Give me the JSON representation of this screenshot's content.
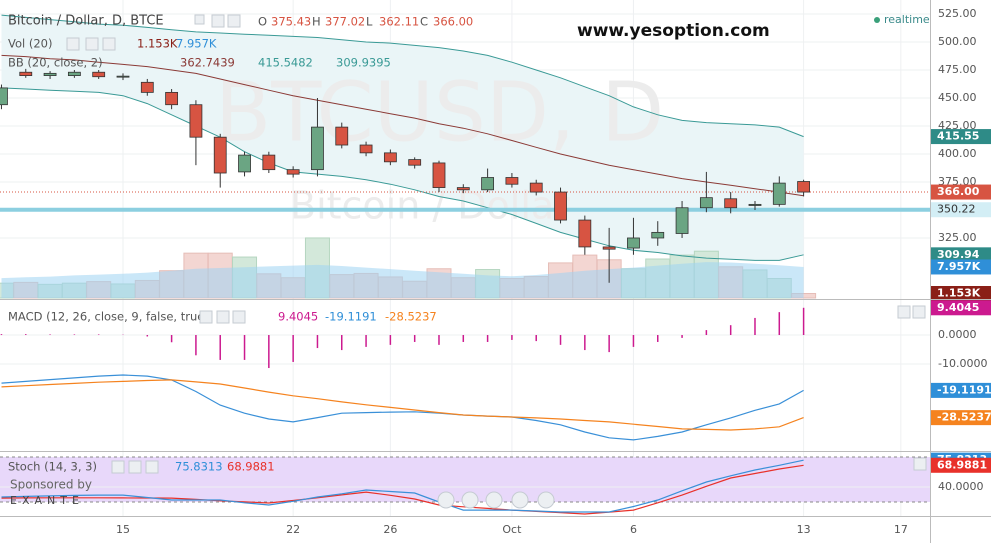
{
  "header": {
    "site": "www.yesoption.com",
    "status": "realtime",
    "watermark": "BTCUSD, D",
    "watermark_sub": "Bitcoin / Dollar",
    "sponsor": "Sponsored by",
    "sponsor_name": "EXANTE"
  },
  "chart_data": [
    {
      "type": "candlestick",
      "title": "Bitcoin / Dollar, D, BTCE",
      "ohlc": [
        {
          "key": "O",
          "value": "375.43"
        },
        {
          "key": "H",
          "value": "377.02"
        },
        {
          "key": "L",
          "value": "362.11"
        },
        {
          "key": "C",
          "value": "366.00"
        }
      ],
      "open": [
        444,
        473,
        470,
        470,
        473,
        469,
        464,
        455,
        444,
        415,
        384,
        399,
        386,
        386,
        424,
        408,
        401,
        395,
        392,
        370,
        368,
        379,
        374,
        366,
        341,
        317,
        316,
        325,
        329,
        352,
        360,
        354,
        355,
        375.43
      ],
      "high": [
        462,
        476,
        474,
        475,
        475,
        472,
        467,
        458,
        448,
        418,
        402,
        402,
        389,
        450,
        428,
        411,
        404,
        397,
        394,
        373,
        387,
        383,
        377,
        370,
        345,
        334,
        343,
        340,
        358,
        384,
        366,
        358,
        380,
        377.02
      ],
      "low": [
        440,
        468,
        467,
        468,
        467,
        466,
        452,
        440,
        390,
        370,
        380,
        383,
        379,
        380,
        405,
        398,
        390,
        387,
        366,
        365,
        366,
        370,
        363,
        338,
        310,
        285,
        310,
        318,
        325,
        348,
        347,
        350,
        353,
        362.11
      ],
      "close": [
        459,
        470,
        472,
        473,
        469,
        469.5,
        455,
        444,
        415,
        383,
        399,
        386,
        382,
        424,
        408,
        401,
        393,
        390,
        370,
        368,
        379,
        373,
        366,
        341,
        317,
        315,
        325,
        330,
        352,
        361,
        352,
        355,
        374,
        366
      ],
      "up_color": "#6ba583",
      "down_color": "#d75442",
      "xlim": [
        -0.06,
        38.2
      ],
      "xticks": [
        {
          "value": 5,
          "label": "15"
        },
        {
          "value": 12,
          "label": "22"
        },
        {
          "value": 16,
          "label": "26"
        },
        {
          "value": 21,
          "label": "Oct"
        },
        {
          "value": 26,
          "label": "6"
        },
        {
          "value": 33,
          "label": "13"
        },
        {
          "value": 37,
          "label": "17"
        }
      ],
      "ylim": [
        271.4,
        537.5
      ],
      "yticks": [
        {
          "value": 325,
          "label": "325.00"
        },
        {
          "value": 350,
          "label": "350.00"
        },
        {
          "value": 375,
          "label": "375.00"
        },
        {
          "value": 400,
          "label": "400.00"
        },
        {
          "value": 425,
          "label": "425.00"
        },
        {
          "value": 450,
          "label": "450.00"
        },
        {
          "value": 475,
          "label": "475.00"
        },
        {
          "value": 500,
          "label": "500.00"
        },
        {
          "value": 525,
          "label": "525.00"
        }
      ],
      "grid": true,
      "bollinger": {
        "title": "BB (20, close, 2)",
        "labels": [
          "362.7439",
          "415.5482",
          "309.9395"
        ],
        "band_color": "#3a9a96",
        "mid_color": "#8b3a36",
        "fill": "#eaf5f7",
        "upper": [
          524,
          522,
          520,
          518,
          516,
          515,
          513,
          511,
          509,
          508,
          507,
          506,
          505,
          504,
          502,
          500,
          499,
          497,
          495,
          492,
          488,
          482,
          475,
          468,
          460,
          452,
          442,
          435,
          430,
          428,
          427,
          426,
          424,
          415.55
        ],
        "middle": [
          488,
          487,
          485,
          484,
          482,
          480,
          478,
          475,
          472,
          467,
          462,
          457,
          452,
          448,
          444,
          440,
          436,
          432,
          427,
          423,
          418,
          412,
          406,
          400,
          395,
          390,
          386,
          382,
          378,
          375,
          372,
          369,
          366,
          362.74
        ],
        "lower": [
          459,
          458,
          457,
          456,
          455,
          452,
          445,
          435,
          425,
          415,
          402,
          392,
          384,
          382,
          380,
          377,
          373,
          368,
          362,
          358,
          352,
          346,
          338,
          330,
          324,
          318,
          314,
          312,
          309,
          307,
          306,
          305,
          305,
          309.94
        ]
      },
      "volume": {
        "title": "Vol (20)",
        "up_color": "#d3e8da",
        "down_color": "#f3d6d2",
        "ma_color": "#9fd4f2",
        "values": [
          3800,
          4000,
          3500,
          3800,
          4200,
          3600,
          4500,
          7000,
          11500,
          11500,
          10500,
          6200,
          5200,
          15400,
          6000,
          6300,
          5400,
          4300,
          7500,
          5200,
          7300,
          5000,
          5500,
          9000,
          11000,
          9800,
          7500,
          10000,
          11000,
          12000,
          8000,
          7200,
          5000,
          1153
        ],
        "ma": [
          5100,
          5300,
          5500,
          5800,
          6000,
          6200,
          6500,
          7000,
          7500,
          7700,
          7900,
          8100,
          8300,
          8500,
          8200,
          7800,
          7400,
          7000,
          6600,
          6200,
          5800,
          5600,
          5900,
          6400,
          7000,
          7400,
          7800,
          8300,
          8800,
          9200,
          9100,
          8800,
          8400,
          7957
        ],
        "badges": [
          {
            "value": 1153,
            "label": "1.153K",
            "color": "#8a1f17"
          },
          {
            "value": 7957,
            "label": "7.957K",
            "color": "#2f8fd8"
          }
        ]
      },
      "price_line": {
        "value": 350.22,
        "label": "350.22",
        "color": "#8ccfe0"
      },
      "badges": [
        {
          "value": 415.55,
          "label": "415.55",
          "color": "#2e8b87"
        },
        {
          "value": 366,
          "label": "366.00",
          "color": "#d75442"
        },
        {
          "value": 309.94,
          "label": "309.94",
          "color": "#2e8b87"
        }
      ]
    },
    {
      "type": "macd",
      "title": "MACD (12, 26, close, 9, false, true)",
      "histogram": {
        "color": "#cc1a8f",
        "values": [
          0.3,
          0.3,
          0.2,
          0.2,
          0.2,
          0.1,
          -0.5,
          -2.5,
          -7,
          -8.6,
          -8.6,
          -11.4,
          -9.3,
          -4.5,
          -5.2,
          -4.1,
          -3.4,
          -2.4,
          -3.4,
          -2.4,
          -2.4,
          -1.7,
          -2.1,
          -3.4,
          -5.2,
          -5.9,
          -4.1,
          -2.4,
          -1,
          1.7,
          3.4,
          5.9,
          7.9,
          9.4045
        ]
      },
      "macd": {
        "color": "#3a90d8",
        "values": [
          -16.6,
          -16,
          -15.4,
          -14.8,
          -14.2,
          -13.8,
          -14.2,
          -15.5,
          -19.5,
          -24.2,
          -27,
          -29,
          -30,
          -28.5,
          -27,
          -26.8,
          -26.6,
          -26.5,
          -27,
          -27.6,
          -28,
          -28.3,
          -29.5,
          -31,
          -33.5,
          -35.5,
          -36.2,
          -35,
          -33.5,
          -31,
          -28.6,
          -26,
          -23.8,
          -19.1191
        ]
      },
      "signal": {
        "color": "#f5831f",
        "values": [
          -17.9,
          -17.5,
          -17.1,
          -16.7,
          -16.3,
          -16,
          -15.7,
          -15.5,
          -16.2,
          -16.9,
          -18.3,
          -19.7,
          -21,
          -22,
          -23.1,
          -24.1,
          -25,
          -25.9,
          -26.8,
          -27.6,
          -28,
          -28.3,
          -28.6,
          -29,
          -29.5,
          -30,
          -30.8,
          -31.6,
          -32.4,
          -32.6,
          -32.8,
          -32.4,
          -31.7,
          -28.5237
        ]
      },
      "ylim": [
        -39.7,
        11.4
      ],
      "yticks": [
        {
          "value": 0,
          "label": "0.0000"
        },
        {
          "value": -10,
          "label": "-10.0000"
        }
      ],
      "badges": [
        {
          "value": 9.4045,
          "label": "9.4045",
          "color": "#cc1a8f"
        },
        {
          "value": -19.1191,
          "label": "-19.1191",
          "color": "#2f8fd8"
        },
        {
          "value": -28.5237,
          "label": "-28.5237",
          "color": "#f5831f"
        }
      ]
    },
    {
      "type": "stoch",
      "title": "Stoch (14, 3, 3)",
      "k": {
        "color": "#3a90d8",
        "values": [
          26.7,
          27.5,
          28.2,
          28.8,
          29.2,
          29.3,
          26,
          22.7,
          22.7,
          22.7,
          19,
          16,
          21,
          26.7,
          31,
          36,
          34,
          32,
          20,
          9.3,
          9.3,
          9.3,
          8,
          6.7,
          6.7,
          6.7,
          14,
          22.7,
          35,
          46.7,
          55,
          62.7,
          69,
          75.8313
        ]
      },
      "d": {
        "color": "#e8312a",
        "values": [
          25.3,
          25.5,
          25.6,
          25.7,
          25.6,
          25.5,
          25.4,
          25.3,
          23.5,
          21.7,
          20.2,
          18.7,
          22,
          25.6,
          29.5,
          33.3,
          29,
          24,
          16,
          13.7,
          11.5,
          9.3,
          7.5,
          5.8,
          4,
          6.6,
          9.3,
          19,
          29.3,
          41,
          52,
          58,
          64,
          68.9881
        ]
      },
      "ylim": [
        2.7,
        86.7
      ],
      "yticks": [
        {
          "value": 40,
          "label": "40.0000"
        }
      ],
      "bands": [
        20,
        80
      ],
      "band_fill": "#e8d8fa",
      "badges": [
        {
          "value": 75.8313,
          "label": "75.8313",
          "color": "#2f8fd8"
        },
        {
          "value": 68.9881,
          "label": "68.9881",
          "color": "#e8312a"
        }
      ]
    }
  ]
}
